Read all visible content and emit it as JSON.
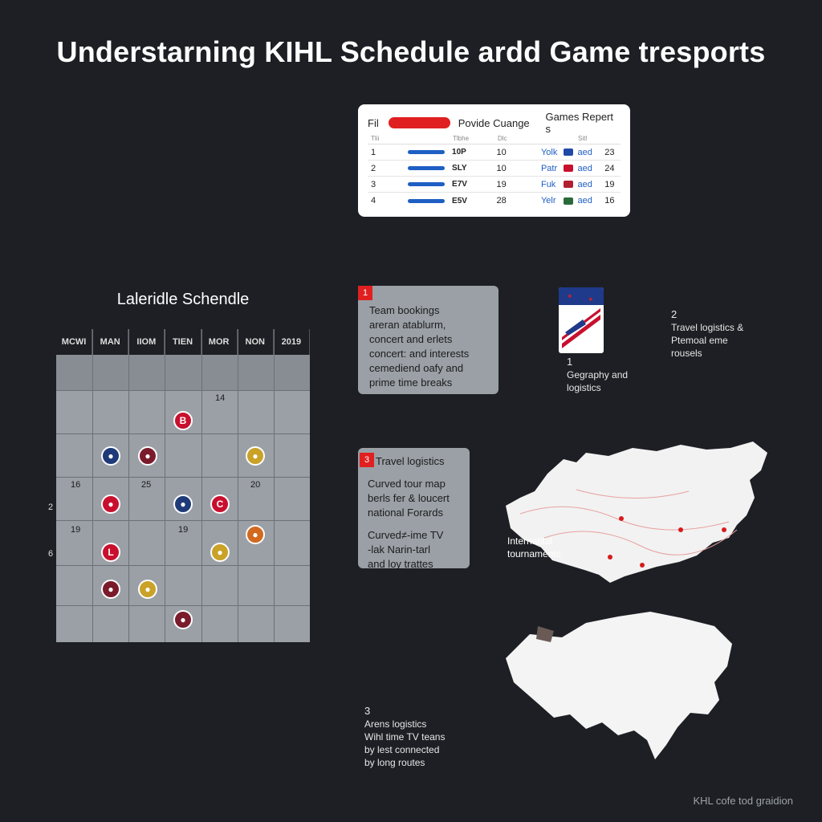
{
  "title": "Understarning KIHL Schedule ardd Game tresports",
  "table": {
    "header": {
      "left": "Fil",
      "mid": "Povide Cuange",
      "right": "Games Repert s"
    },
    "subheader": [
      "Tlii",
      "Tlbhe",
      "Dlc",
      "Sitl"
    ],
    "rows": [
      {
        "num": "1",
        "code": "10P",
        "val": "10",
        "city": "Yolk",
        "flag_color": "#1f4aa8",
        "and": "aed",
        "last": "23"
      },
      {
        "num": "2",
        "code": "SLY",
        "val": "10",
        "city": "Patr",
        "flag_color": "#c8102e",
        "and": "aed",
        "last": "24"
      },
      {
        "num": "3",
        "code": "E7V",
        "val": "19",
        "city": "Fuk",
        "flag_color": "#b02030",
        "and": "aed",
        "last": "19"
      },
      {
        "num": "4",
        "code": "E5V",
        "val": "28",
        "city": "Yelr",
        "flag_color": "#2a6a3a",
        "and": "aed",
        "last": "16"
      }
    ]
  },
  "calendar": {
    "title": "Laleridle Schendle",
    "days": [
      "MCWI",
      "MAN",
      "IIOM",
      "TIEN",
      "MOR",
      "NON",
      "2019"
    ],
    "day_numbers": {
      "a": "14",
      "b": "16",
      "c": "25",
      "d": "20",
      "e": "19",
      "f": "19"
    },
    "side_marks": {
      "a": "2",
      "b": "6"
    },
    "logo_letters": {
      "a": "B",
      "b": "C",
      "c": "L"
    },
    "colors": {
      "red": "#c8102e",
      "navy": "#1f3a78",
      "gold": "#c9a227",
      "maroon": "#7a1b2b",
      "orange": "#d2691e"
    }
  },
  "box1": {
    "badge": "1",
    "lines": [
      "Team bookings",
      "areran atablurm,",
      "concert and erlets",
      "concert: and interests",
      "cemediend oafy and",
      "prime time breaks"
    ]
  },
  "box2": {
    "badge": "3",
    "title": "Travel logistics",
    "lines_a": [
      "Curved tour map",
      "berls fer & loucert",
      "national Forards"
    ],
    "lines_b": [
      "Curved≠-ime TV",
      "-lak Narin-tarl",
      "and loy trattes"
    ]
  },
  "note_geo": {
    "num": "1",
    "lines": [
      "Gegraphy and",
      "logistics"
    ]
  },
  "note_travel": {
    "num": "2",
    "lines": [
      "Travel logistics &",
      "Ptemoal eme",
      "rousels"
    ]
  },
  "map_label": [
    "Internatital",
    "tournaments"
  ],
  "note_arena": {
    "num": "3",
    "lines": [
      "Arens logistics",
      "Wihl time TV teans",
      "by lest connected",
      "by long routes"
    ]
  },
  "footer": "KHL cofe tod graidion"
}
